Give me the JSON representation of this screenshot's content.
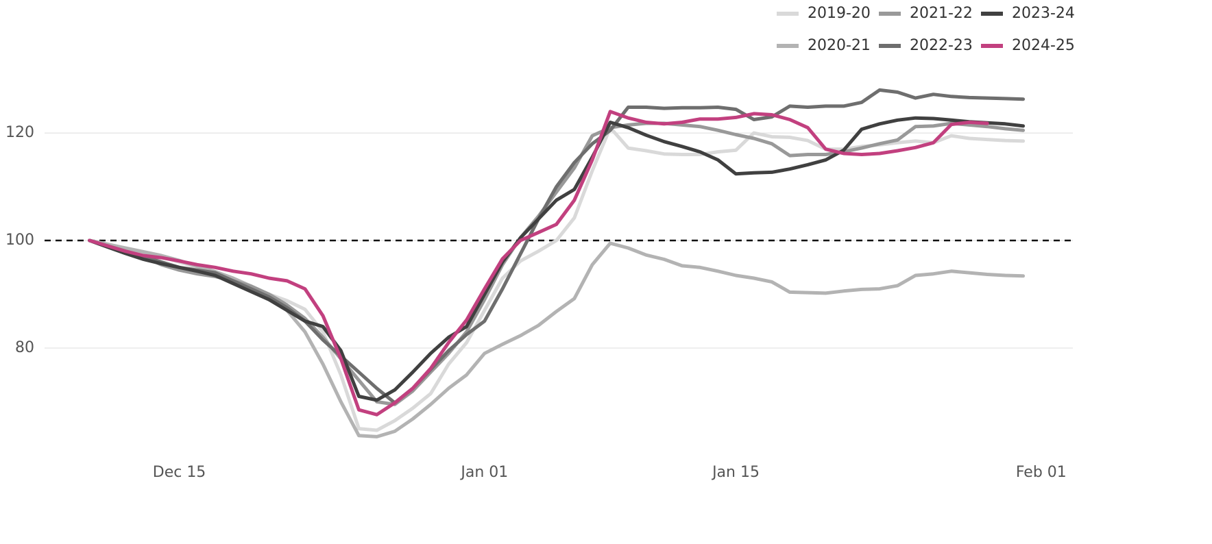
{
  "chart_data": {
    "type": "line",
    "x": [
      "Dec 10",
      "Dec 11",
      "Dec 12",
      "Dec 13",
      "Dec 14",
      "Dec 15",
      "Dec 16",
      "Dec 17",
      "Dec 18",
      "Dec 19",
      "Dec 20",
      "Dec 21",
      "Dec 22",
      "Dec 23",
      "Dec 24",
      "Dec 25",
      "Dec 26",
      "Dec 27",
      "Dec 28",
      "Dec 29",
      "Dec 30",
      "Dec 31",
      "Jan 01",
      "Jan 02",
      "Jan 03",
      "Jan 04",
      "Jan 05",
      "Jan 06",
      "Jan 07",
      "Jan 08",
      "Jan 09",
      "Jan 10",
      "Jan 11",
      "Jan 12",
      "Jan 13",
      "Jan 14",
      "Jan 15",
      "Jan 16",
      "Jan 17",
      "Jan 18",
      "Jan 19",
      "Jan 20",
      "Jan 21",
      "Jan 22",
      "Jan 23",
      "Jan 24",
      "Jan 25",
      "Jan 26",
      "Jan 27",
      "Jan 28",
      "Jan 29",
      "Jan 30",
      "Jan 31"
    ],
    "series": [
      {
        "name": "2019-20",
        "color": "#d9d9d9",
        "values": [
          100,
          99.3,
          98.5,
          97.8,
          97,
          96,
          95,
          94,
          92.8,
          91.5,
          90,
          88.8,
          87.2,
          83,
          75,
          65,
          64.7,
          66.5,
          68.8,
          71.5,
          77,
          81,
          87,
          93,
          96.2,
          98,
          100,
          104.2,
          113,
          121,
          117.2,
          116.7,
          116.1,
          116,
          116,
          116.5,
          116.8,
          120,
          119.3,
          119.2,
          118.6,
          117,
          117,
          117.5,
          117.8,
          118.2,
          118.5,
          118.2,
          119.5,
          119,
          118.8,
          118.6,
          118.5
        ]
      },
      {
        "name": "2020-21",
        "color": "#b3b3b3",
        "values": [
          100,
          99.3,
          98.6,
          97.9,
          97.2,
          96.3,
          95.2,
          94.2,
          93,
          91.5,
          89.5,
          87,
          83,
          77,
          70,
          63.7,
          63.5,
          64.5,
          66.8,
          69.5,
          72.5,
          75,
          79,
          80.7,
          82.3,
          84.2,
          86.8,
          89.2,
          95.5,
          99.5,
          98.6,
          97.3,
          96.5,
          95.3,
          95,
          94.3,
          93.5,
          93,
          92.3,
          90.4,
          90.3,
          90.2,
          90.6,
          90.9,
          91,
          91.6,
          93.5,
          93.8,
          94.3,
          94,
          93.7,
          93.5,
          93.4
        ]
      },
      {
        "name": "2021-22",
        "color": "#999999",
        "values": [
          100,
          99,
          98,
          97,
          95.5,
          94.5,
          93.8,
          93.3,
          92.5,
          91.5,
          90,
          88,
          85.5,
          82,
          78,
          74,
          70,
          69.5,
          72,
          75.5,
          79,
          83,
          89,
          95.5,
          100.5,
          104.5,
          109,
          113.5,
          119.5,
          121,
          121.5,
          121.8,
          121.8,
          121.5,
          121.2,
          120.5,
          119.7,
          119,
          118,
          115.8,
          116,
          116,
          116.5,
          117.2,
          118,
          118.7,
          121.2,
          121.3,
          121.8,
          121.5,
          121.2,
          120.8,
          120.5
        ]
      },
      {
        "name": "2022-23",
        "color": "#6e6e6e",
        "values": [
          100,
          99,
          98,
          97,
          96,
          95,
          94.5,
          94,
          92.5,
          91,
          89.5,
          87.5,
          85,
          81.5,
          78.5,
          75.5,
          72.5,
          69.8,
          72.5,
          76,
          79.5,
          82.5,
          85,
          91,
          97.5,
          104,
          110,
          114.5,
          118,
          120.5,
          124.8,
          124.8,
          124.6,
          124.7,
          124.7,
          124.8,
          124.4,
          122.5,
          123,
          125,
          124.8,
          125,
          125,
          125.7,
          128,
          127.6,
          126.5,
          127.2,
          126.8,
          126.6,
          126.5,
          126.4,
          126.3
        ]
      },
      {
        "name": "2023-24",
        "color": "#404040",
        "values": [
          100,
          98.8,
          97.6,
          96.5,
          95.7,
          95,
          94.3,
          93.5,
          92,
          90.5,
          89,
          87,
          85,
          84,
          79.5,
          71,
          70.3,
          72.2,
          75.5,
          79,
          82,
          84,
          90,
          96,
          100.5,
          104,
          107.5,
          109.5,
          115.5,
          122,
          121,
          119.6,
          118.4,
          117.5,
          116.5,
          115,
          112.4,
          112.6,
          112.7,
          113.3,
          114.1,
          115,
          116.8,
          120.7,
          121.7,
          122.4,
          122.8,
          122.7,
          122.4,
          122.1,
          121.9,
          121.7,
          121.3
        ]
      },
      {
        "name": "2024-25",
        "color": "#c2407f",
        "values": [
          100,
          99,
          98,
          97.2,
          96.8,
          96.2,
          95.5,
          95,
          94.3,
          93.8,
          93,
          92.5,
          91,
          86,
          78,
          68.5,
          67.6,
          69.8,
          72.5,
          76.2,
          81,
          85.2,
          91,
          96.6,
          100,
          101.5,
          103,
          107.5,
          115,
          124,
          122.8,
          122,
          121.7,
          122,
          122.6,
          122.6,
          122.9,
          123.6,
          123.4,
          122.5,
          121,
          117,
          116.2,
          116,
          116.2,
          116.7,
          117.3,
          118.2,
          121.6,
          122,
          121.8,
          null,
          null
        ]
      }
    ],
    "xlim": [
      "Dec 07",
      "Feb 02"
    ],
    "xticks": [
      "Dec 15",
      "Jan 01",
      "Jan 15",
      "Feb 01"
    ],
    "ylim": [
      61,
      132
    ],
    "yticks": [
      80,
      100,
      120
    ],
    "grid": true,
    "reference_line": 100,
    "legend": "top-right"
  }
}
